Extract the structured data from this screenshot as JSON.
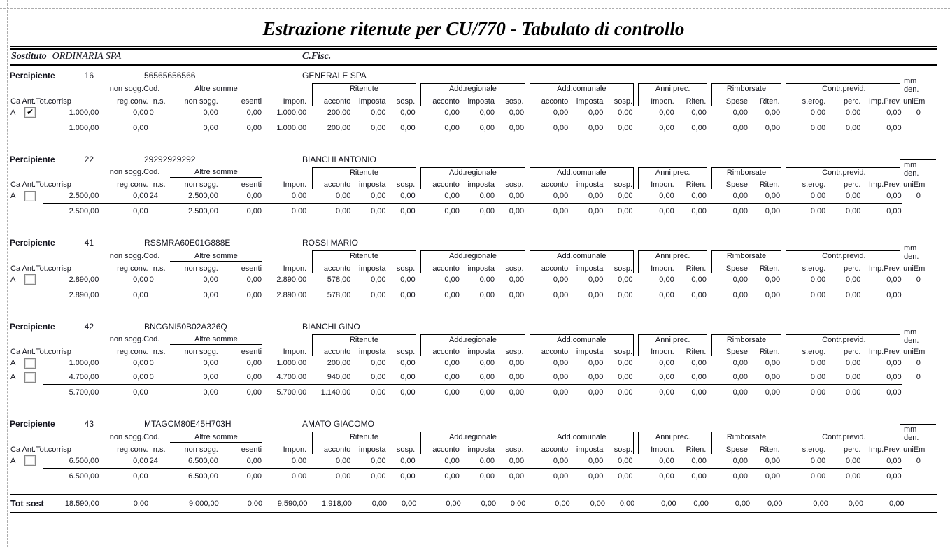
{
  "page": {
    "title": "Estrazione ritenute per CU/770 - Tabulato di controllo",
    "header": {
      "sostituto_label": "Sostituto",
      "sostituto_value": "ORDINARIA SPA",
      "cfisc_label": "C.Fisc."
    },
    "columns": {
      "group_non_sogg_cod": "non sogg.Cod.",
      "group_altre_somme": "Altre somme",
      "group_ritenute": "Ritenute",
      "group_add_regionale": "Add.regionale",
      "group_add_comunale": "Add.comunale",
      "group_anni_prec": "Anni prec.",
      "group_rimborsate": "Rimborsate",
      "group_contr_previd": "Contr.previd.",
      "mm": "mm",
      "den": "den.",
      "ca_ant_tot_corrisp": "Ca Ant.Tot.corrisp",
      "reg_conv": "reg.conv.",
      "ns": "n.s.",
      "non_sogg": "non sogg.",
      "esenti": "esenti",
      "impon": "Impon.",
      "acconto": "acconto",
      "imposta": "imposta",
      "sosp": "sosp.",
      "anni_prec_impon": "Impon.",
      "anni_prec_riten": "Riten.",
      "spese": "Spese",
      "rimb_riten": "Riten.",
      "s_erog": "s.erog.",
      "perc": "perc.",
      "imp_prev": "Imp.Prev.",
      "uni_em": "uniEm"
    },
    "sections": [
      {
        "label": "Percipiente",
        "number": "16",
        "code": "56565656566",
        "name": "GENERALE SPA",
        "rows": [
          {
            "ca": "A",
            "ant_checked": true,
            "values": [
              "1.000,00",
              "0,00",
              "0",
              "0,00",
              "0,00",
              "1.000,00",
              "200,00",
              "0,00",
              "0,00",
              "0,00",
              "0,00",
              "0,00",
              "0,00",
              "0,00",
              "0,00",
              "0,00",
              "0,00",
              "0,00",
              "0,00",
              "0,00",
              "0,00",
              "0,00"
            ],
            "uniem": "0"
          }
        ],
        "total": [
          "1.000,00",
          "0,00",
          "",
          "0,00",
          "0,00",
          "1.000,00",
          "200,00",
          "0,00",
          "0,00",
          "0,00",
          "0,00",
          "0,00",
          "0,00",
          "0,00",
          "0,00",
          "0,00",
          "0,00",
          "0,00",
          "0,00",
          "0,00",
          "0,00",
          "0,00"
        ]
      },
      {
        "label": "Percipiente",
        "number": "22",
        "code": "29292929292",
        "name": "BIANCHI ANTONIO",
        "rows": [
          {
            "ca": "A",
            "ant_checked": false,
            "values": [
              "2.500,00",
              "0,00",
              "24",
              "2.500,00",
              "0,00",
              "0,00",
              "0,00",
              "0,00",
              "0,00",
              "0,00",
              "0,00",
              "0,00",
              "0,00",
              "0,00",
              "0,00",
              "0,00",
              "0,00",
              "0,00",
              "0,00",
              "0,00",
              "0,00",
              "0,00"
            ],
            "uniem": "0"
          }
        ],
        "total": [
          "2.500,00",
          "0,00",
          "",
          "2.500,00",
          "0,00",
          "0,00",
          "0,00",
          "0,00",
          "0,00",
          "0,00",
          "0,00",
          "0,00",
          "0,00",
          "0,00",
          "0,00",
          "0,00",
          "0,00",
          "0,00",
          "0,00",
          "0,00",
          "0,00",
          "0,00"
        ]
      },
      {
        "label": "Percipiente",
        "number": "41",
        "code": "RSSMRA60E01G888E",
        "name": "ROSSI MARIO",
        "rows": [
          {
            "ca": "A",
            "ant_checked": false,
            "values": [
              "2.890,00",
              "0,00",
              "0",
              "0,00",
              "0,00",
              "2.890,00",
              "578,00",
              "0,00",
              "0,00",
              "0,00",
              "0,00",
              "0,00",
              "0,00",
              "0,00",
              "0,00",
              "0,00",
              "0,00",
              "0,00",
              "0,00",
              "0,00",
              "0,00",
              "0,00"
            ],
            "uniem": "0"
          }
        ],
        "total": [
          "2.890,00",
          "0,00",
          "",
          "0,00",
          "0,00",
          "2.890,00",
          "578,00",
          "0,00",
          "0,00",
          "0,00",
          "0,00",
          "0,00",
          "0,00",
          "0,00",
          "0,00",
          "0,00",
          "0,00",
          "0,00",
          "0,00",
          "0,00",
          "0,00",
          "0,00"
        ]
      },
      {
        "label": "Percipiente",
        "number": "42",
        "code": "BNCGNI50B02A326Q",
        "name": "BIANCHI GINO",
        "rows": [
          {
            "ca": "A",
            "ant_checked": false,
            "values": [
              "1.000,00",
              "0,00",
              "0",
              "0,00",
              "0,00",
              "1.000,00",
              "200,00",
              "0,00",
              "0,00",
              "0,00",
              "0,00",
              "0,00",
              "0,00",
              "0,00",
              "0,00",
              "0,00",
              "0,00",
              "0,00",
              "0,00",
              "0,00",
              "0,00",
              "0,00"
            ],
            "uniem": "0"
          },
          {
            "ca": "A",
            "ant_checked": false,
            "values": [
              "4.700,00",
              "0,00",
              "0",
              "0,00",
              "0,00",
              "4.700,00",
              "940,00",
              "0,00",
              "0,00",
              "0,00",
              "0,00",
              "0,00",
              "0,00",
              "0,00",
              "0,00",
              "0,00",
              "0,00",
              "0,00",
              "0,00",
              "0,00",
              "0,00",
              "0,00"
            ],
            "uniem": "0"
          }
        ],
        "total": [
          "5.700,00",
          "0,00",
          "",
          "0,00",
          "0,00",
          "5.700,00",
          "1.140,00",
          "0,00",
          "0,00",
          "0,00",
          "0,00",
          "0,00",
          "0,00",
          "0,00",
          "0,00",
          "0,00",
          "0,00",
          "0,00",
          "0,00",
          "0,00",
          "0,00",
          "0,00"
        ]
      },
      {
        "label": "Percipiente",
        "number": "43",
        "code": "MTAGCM80E45H703H",
        "name": "AMATO GIACOMO",
        "rows": [
          {
            "ca": "A",
            "ant_checked": false,
            "values": [
              "6.500,00",
              "0,00",
              "24",
              "6.500,00",
              "0,00",
              "0,00",
              "0,00",
              "0,00",
              "0,00",
              "0,00",
              "0,00",
              "0,00",
              "0,00",
              "0,00",
              "0,00",
              "0,00",
              "0,00",
              "0,00",
              "0,00",
              "0,00",
              "0,00",
              "0,00"
            ],
            "uniem": "0"
          }
        ],
        "total": [
          "6.500,00",
          "0,00",
          "",
          "6.500,00",
          "0,00",
          "0,00",
          "0,00",
          "0,00",
          "0,00",
          "0,00",
          "0,00",
          "0,00",
          "0,00",
          "0,00",
          "0,00",
          "0,00",
          "0,00",
          "0,00",
          "0,00",
          "0,00",
          "0,00",
          "0,00"
        ]
      }
    ],
    "grand_total": {
      "label": "Tot sost",
      "values": [
        "18.590,00",
        "0,00",
        "",
        "9.000,00",
        "0,00",
        "9.590,00",
        "1.918,00",
        "0,00",
        "0,00",
        "0,00",
        "0,00",
        "0,00",
        "0,00",
        "0,00",
        "0,00",
        "0,00",
        "0,00",
        "0,00",
        "0,00",
        "0,00",
        "0,00",
        "0,00"
      ]
    }
  }
}
